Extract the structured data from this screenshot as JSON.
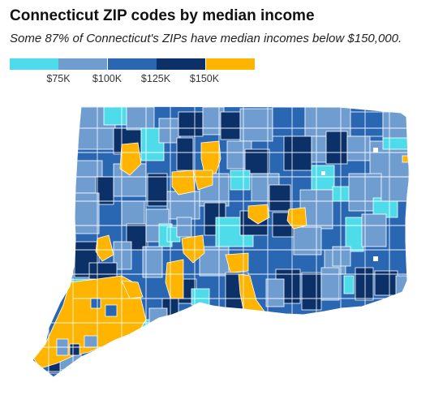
{
  "title": "Connecticut ZIP codes by median income",
  "subtitle": "Some 87% of Connecticut's ZIPs have median incomes below $150,000.",
  "legend": {
    "labels": [
      "$75K",
      "$100K",
      "$125K",
      "$150K"
    ],
    "bins": [
      {
        "color": "#4fdcea"
      },
      {
        "color": "#6f9dd0"
      },
      {
        "color": "#2a67b3"
      },
      {
        "color": "#0b3168"
      },
      {
        "color": "#ffb400"
      }
    ]
  },
  "colors": {
    "light_cyan": "#4fdcea",
    "light_blue": "#6f9dd0",
    "mid_blue": "#2a67b3",
    "dark_blue": "#0b3168",
    "gold": "#ffb400",
    "border": "#ffffff"
  }
}
